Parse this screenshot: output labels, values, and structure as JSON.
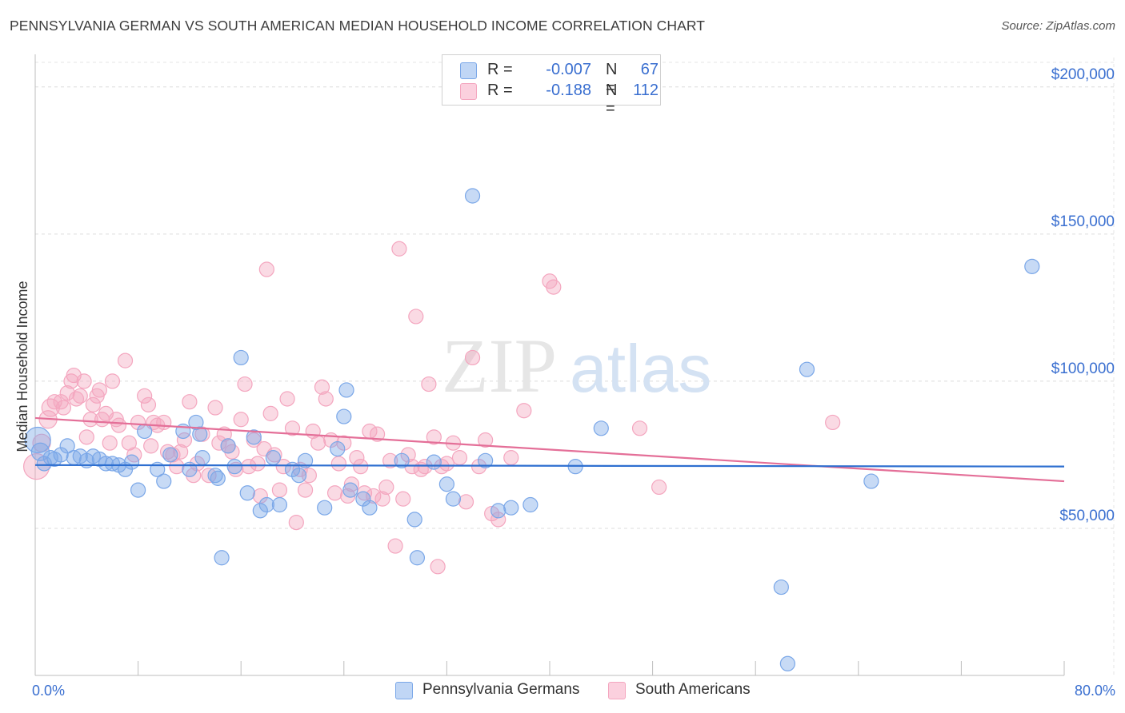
{
  "title": "PENNSYLVANIA GERMAN VS SOUTH AMERICAN MEDIAN HOUSEHOLD INCOME CORRELATION CHART",
  "source": "Source: ZipAtlas.com",
  "watermark": {
    "zip": "ZIP",
    "atlas": "atlas"
  },
  "legend": {
    "rows": [
      {
        "r_label": "R = ",
        "r_value": "-0.007",
        "n_label": "N = ",
        "n_value": "67"
      },
      {
        "r_label": "R = ",
        "r_value": "-0.188",
        "n_label": "N = ",
        "n_value": "112"
      }
    ]
  },
  "chart_data": {
    "type": "scatter",
    "title": "PENNSYLVANIA GERMAN VS SOUTH AMERICAN MEDIAN HOUSEHOLD INCOME CORRELATION CHART",
    "xlabel": "",
    "ylabel": "Median Household Income",
    "xlim": [
      0,
      80
    ],
    "ylim": [
      0,
      210000
    ],
    "x_tick_labels": [
      "0.0%",
      "80.0%"
    ],
    "y_ticks": [
      50000,
      100000,
      150000,
      200000
    ],
    "y_tick_labels": [
      "$50,000",
      "$100,000",
      "$150,000",
      "$200,000"
    ],
    "grid": true,
    "colors": {
      "pa": "#7aa7e8",
      "pa_line": "#2e6fd0",
      "sa": "#f4a6bf",
      "sa_line": "#e46f98",
      "axis_text": "#3a6fd0"
    },
    "series": [
      {
        "name": "Pennsylvania Germans",
        "r": -0.007,
        "n": 67,
        "trend": {
          "x0": 0,
          "y0": 71500,
          "x1": 80,
          "y1": 71000
        },
        "points": [
          [
            0.2,
            80000,
            16
          ],
          [
            0.4,
            76000,
            11
          ],
          [
            0.7,
            72000,
            9
          ],
          [
            1.2,
            74000,
            9
          ],
          [
            1.5,
            73500,
            9
          ],
          [
            2.0,
            75000,
            9
          ],
          [
            2.5,
            78000,
            9
          ],
          [
            3.0,
            74000,
            9
          ],
          [
            3.5,
            74500,
            9
          ],
          [
            4.0,
            73000,
            9
          ],
          [
            4.5,
            74500,
            9
          ],
          [
            5.0,
            73500,
            9
          ],
          [
            5.5,
            72000,
            9
          ],
          [
            6.0,
            72000,
            9
          ],
          [
            6.5,
            71500,
            9
          ],
          [
            7.0,
            70000,
            9
          ],
          [
            7.5,
            72500,
            9
          ],
          [
            8.0,
            63000,
            9
          ],
          [
            8.5,
            83000,
            9
          ],
          [
            9.5,
            70000,
            9
          ],
          [
            10.0,
            66000,
            9
          ],
          [
            10.5,
            75000,
            9
          ],
          [
            11.5,
            83000,
            9
          ],
          [
            12.0,
            70000,
            9
          ],
          [
            12.5,
            86000,
            9
          ],
          [
            12.8,
            82000,
            9
          ],
          [
            13.0,
            74000,
            9
          ],
          [
            14.0,
            68000,
            9
          ],
          [
            14.2,
            67000,
            9
          ],
          [
            14.5,
            40000,
            9
          ],
          [
            15.0,
            78000,
            9
          ],
          [
            15.5,
            71000,
            9
          ],
          [
            16.0,
            108000,
            9
          ],
          [
            16.5,
            62000,
            9
          ],
          [
            17.0,
            81000,
            9
          ],
          [
            17.5,
            56000,
            9
          ],
          [
            18.0,
            58000,
            9
          ],
          [
            18.5,
            74000,
            9
          ],
          [
            19.0,
            58000,
            9
          ],
          [
            20.0,
            70000,
            9
          ],
          [
            20.5,
            68000,
            9
          ],
          [
            21.0,
            73000,
            9
          ],
          [
            22.5,
            57000,
            9
          ],
          [
            23.5,
            77000,
            9
          ],
          [
            24.0,
            88000,
            9
          ],
          [
            24.2,
            97000,
            9
          ],
          [
            24.5,
            63000,
            9
          ],
          [
            25.5,
            60000,
            9
          ],
          [
            26.0,
            57000,
            9
          ],
          [
            29.5,
            53000,
            9
          ],
          [
            29.7,
            40000,
            9
          ],
          [
            31.0,
            72500,
            9
          ],
          [
            32.0,
            65000,
            9
          ],
          [
            32.5,
            60000,
            9
          ],
          [
            34.0,
            163000,
            9
          ],
          [
            35.0,
            73000,
            9
          ],
          [
            36.0,
            56000,
            9
          ],
          [
            37.0,
            57000,
            9
          ],
          [
            38.5,
            58000,
            9
          ],
          [
            42.0,
            71000,
            9
          ],
          [
            44.0,
            84000,
            9
          ],
          [
            58.0,
            30000,
            9
          ],
          [
            60.0,
            104000,
            9
          ],
          [
            65.0,
            66000,
            9
          ],
          [
            77.5,
            139000,
            9
          ],
          [
            28.5,
            73000,
            9
          ],
          [
            58.5,
            4000,
            9
          ]
        ]
      },
      {
        "name": "South Americans",
        "r": -0.188,
        "n": 112,
        "trend": {
          "x0": 0,
          "y0": 87500,
          "x1": 80,
          "y1": 66000
        },
        "points": [
          [
            0.1,
            71000,
            16
          ],
          [
            0.5,
            79000,
            11
          ],
          [
            1.0,
            87000,
            11
          ],
          [
            1.2,
            91000,
            11
          ],
          [
            1.5,
            93000,
            9
          ],
          [
            2.0,
            93000,
            9
          ],
          [
            2.2,
            91000,
            9
          ],
          [
            2.5,
            96000,
            9
          ],
          [
            2.8,
            100000,
            9
          ],
          [
            3.0,
            102000,
            9
          ],
          [
            3.2,
            94000,
            9
          ],
          [
            3.5,
            95000,
            9
          ],
          [
            3.8,
            100000,
            9
          ],
          [
            4.0,
            81000,
            9
          ],
          [
            4.3,
            87000,
            9
          ],
          [
            4.5,
            92000,
            9
          ],
          [
            4.8,
            95000,
            9
          ],
          [
            5.0,
            97000,
            9
          ],
          [
            5.2,
            87000,
            9
          ],
          [
            5.5,
            89000,
            9
          ],
          [
            5.8,
            79000,
            9
          ],
          [
            6.0,
            100000,
            9
          ],
          [
            6.3,
            87000,
            9
          ],
          [
            6.5,
            85000,
            9
          ],
          [
            7.0,
            107000,
            9
          ],
          [
            7.3,
            79000,
            9
          ],
          [
            7.7,
            75000,
            9
          ],
          [
            8.0,
            86000,
            9
          ],
          [
            8.5,
            95000,
            9
          ],
          [
            8.8,
            92000,
            9
          ],
          [
            9.0,
            78000,
            9
          ],
          [
            9.2,
            86000,
            9
          ],
          [
            9.5,
            85000,
            9
          ],
          [
            10.0,
            86000,
            9
          ],
          [
            10.3,
            76000,
            9
          ],
          [
            10.7,
            75000,
            9
          ],
          [
            11.0,
            71000,
            9
          ],
          [
            11.3,
            76000,
            9
          ],
          [
            11.6,
            80000,
            9
          ],
          [
            12.0,
            93000,
            9
          ],
          [
            12.3,
            68000,
            9
          ],
          [
            12.6,
            72000,
            9
          ],
          [
            13.0,
            82000,
            9
          ],
          [
            13.5,
            68000,
            9
          ],
          [
            14.0,
            91000,
            9
          ],
          [
            14.3,
            79000,
            9
          ],
          [
            14.7,
            82000,
            9
          ],
          [
            15.0,
            78000,
            9
          ],
          [
            15.3,
            76000,
            9
          ],
          [
            15.6,
            70000,
            9
          ],
          [
            16.0,
            87000,
            9
          ],
          [
            16.3,
            99000,
            9
          ],
          [
            16.6,
            71000,
            9
          ],
          [
            17.0,
            80000,
            9
          ],
          [
            17.3,
            72000,
            9
          ],
          [
            17.5,
            61000,
            9
          ],
          [
            17.8,
            77000,
            9
          ],
          [
            18.0,
            138000,
            9
          ],
          [
            18.3,
            89000,
            9
          ],
          [
            18.6,
            75000,
            9
          ],
          [
            19.0,
            63000,
            9
          ],
          [
            19.3,
            71000,
            9
          ],
          [
            19.6,
            94000,
            9
          ],
          [
            20.0,
            84000,
            9
          ],
          [
            20.3,
            52000,
            9
          ],
          [
            20.6,
            70000,
            9
          ],
          [
            21.0,
            63000,
            9
          ],
          [
            21.3,
            68000,
            9
          ],
          [
            21.6,
            83000,
            9
          ],
          [
            22.0,
            79000,
            9
          ],
          [
            22.3,
            98000,
            9
          ],
          [
            22.6,
            94000,
            9
          ],
          [
            23.0,
            80000,
            9
          ],
          [
            23.3,
            62000,
            9
          ],
          [
            23.6,
            72000,
            9
          ],
          [
            24.0,
            79000,
            9
          ],
          [
            24.3,
            61000,
            9
          ],
          [
            24.6,
            65000,
            9
          ],
          [
            25.0,
            74000,
            9
          ],
          [
            25.3,
            71000,
            9
          ],
          [
            25.6,
            62000,
            9
          ],
          [
            26.0,
            83000,
            9
          ],
          [
            26.3,
            61000,
            9
          ],
          [
            26.6,
            82000,
            9
          ],
          [
            27.0,
            60000,
            9
          ],
          [
            27.3,
            64000,
            9
          ],
          [
            27.6,
            73000,
            9
          ],
          [
            28.0,
            44000,
            9
          ],
          [
            28.3,
            145000,
            9
          ],
          [
            28.6,
            60000,
            9
          ],
          [
            29.0,
            75000,
            9
          ],
          [
            29.3,
            71000,
            9
          ],
          [
            29.6,
            122000,
            9
          ],
          [
            30.0,
            70000,
            9
          ],
          [
            30.3,
            71000,
            9
          ],
          [
            30.6,
            99000,
            9
          ],
          [
            31.0,
            81000,
            9
          ],
          [
            31.3,
            37000,
            9
          ],
          [
            31.6,
            71000,
            9
          ],
          [
            32.0,
            72000,
            9
          ],
          [
            32.5,
            79000,
            9
          ],
          [
            33.0,
            74000,
            9
          ],
          [
            33.5,
            59000,
            9
          ],
          [
            34.0,
            108000,
            9
          ],
          [
            34.5,
            71000,
            9
          ],
          [
            35.0,
            80000,
            9
          ],
          [
            35.5,
            55000,
            9
          ],
          [
            36.0,
            53000,
            9
          ],
          [
            37.0,
            74000,
            9
          ],
          [
            38.0,
            90000,
            9
          ],
          [
            40.0,
            134000,
            9
          ],
          [
            40.3,
            132000,
            9
          ],
          [
            47.0,
            84000,
            9
          ],
          [
            48.5,
            64000,
            9
          ],
          [
            62.0,
            86000,
            9
          ]
        ]
      }
    ]
  },
  "bottom_legend": [
    "Pennsylvania Germans",
    "South Americans"
  ]
}
